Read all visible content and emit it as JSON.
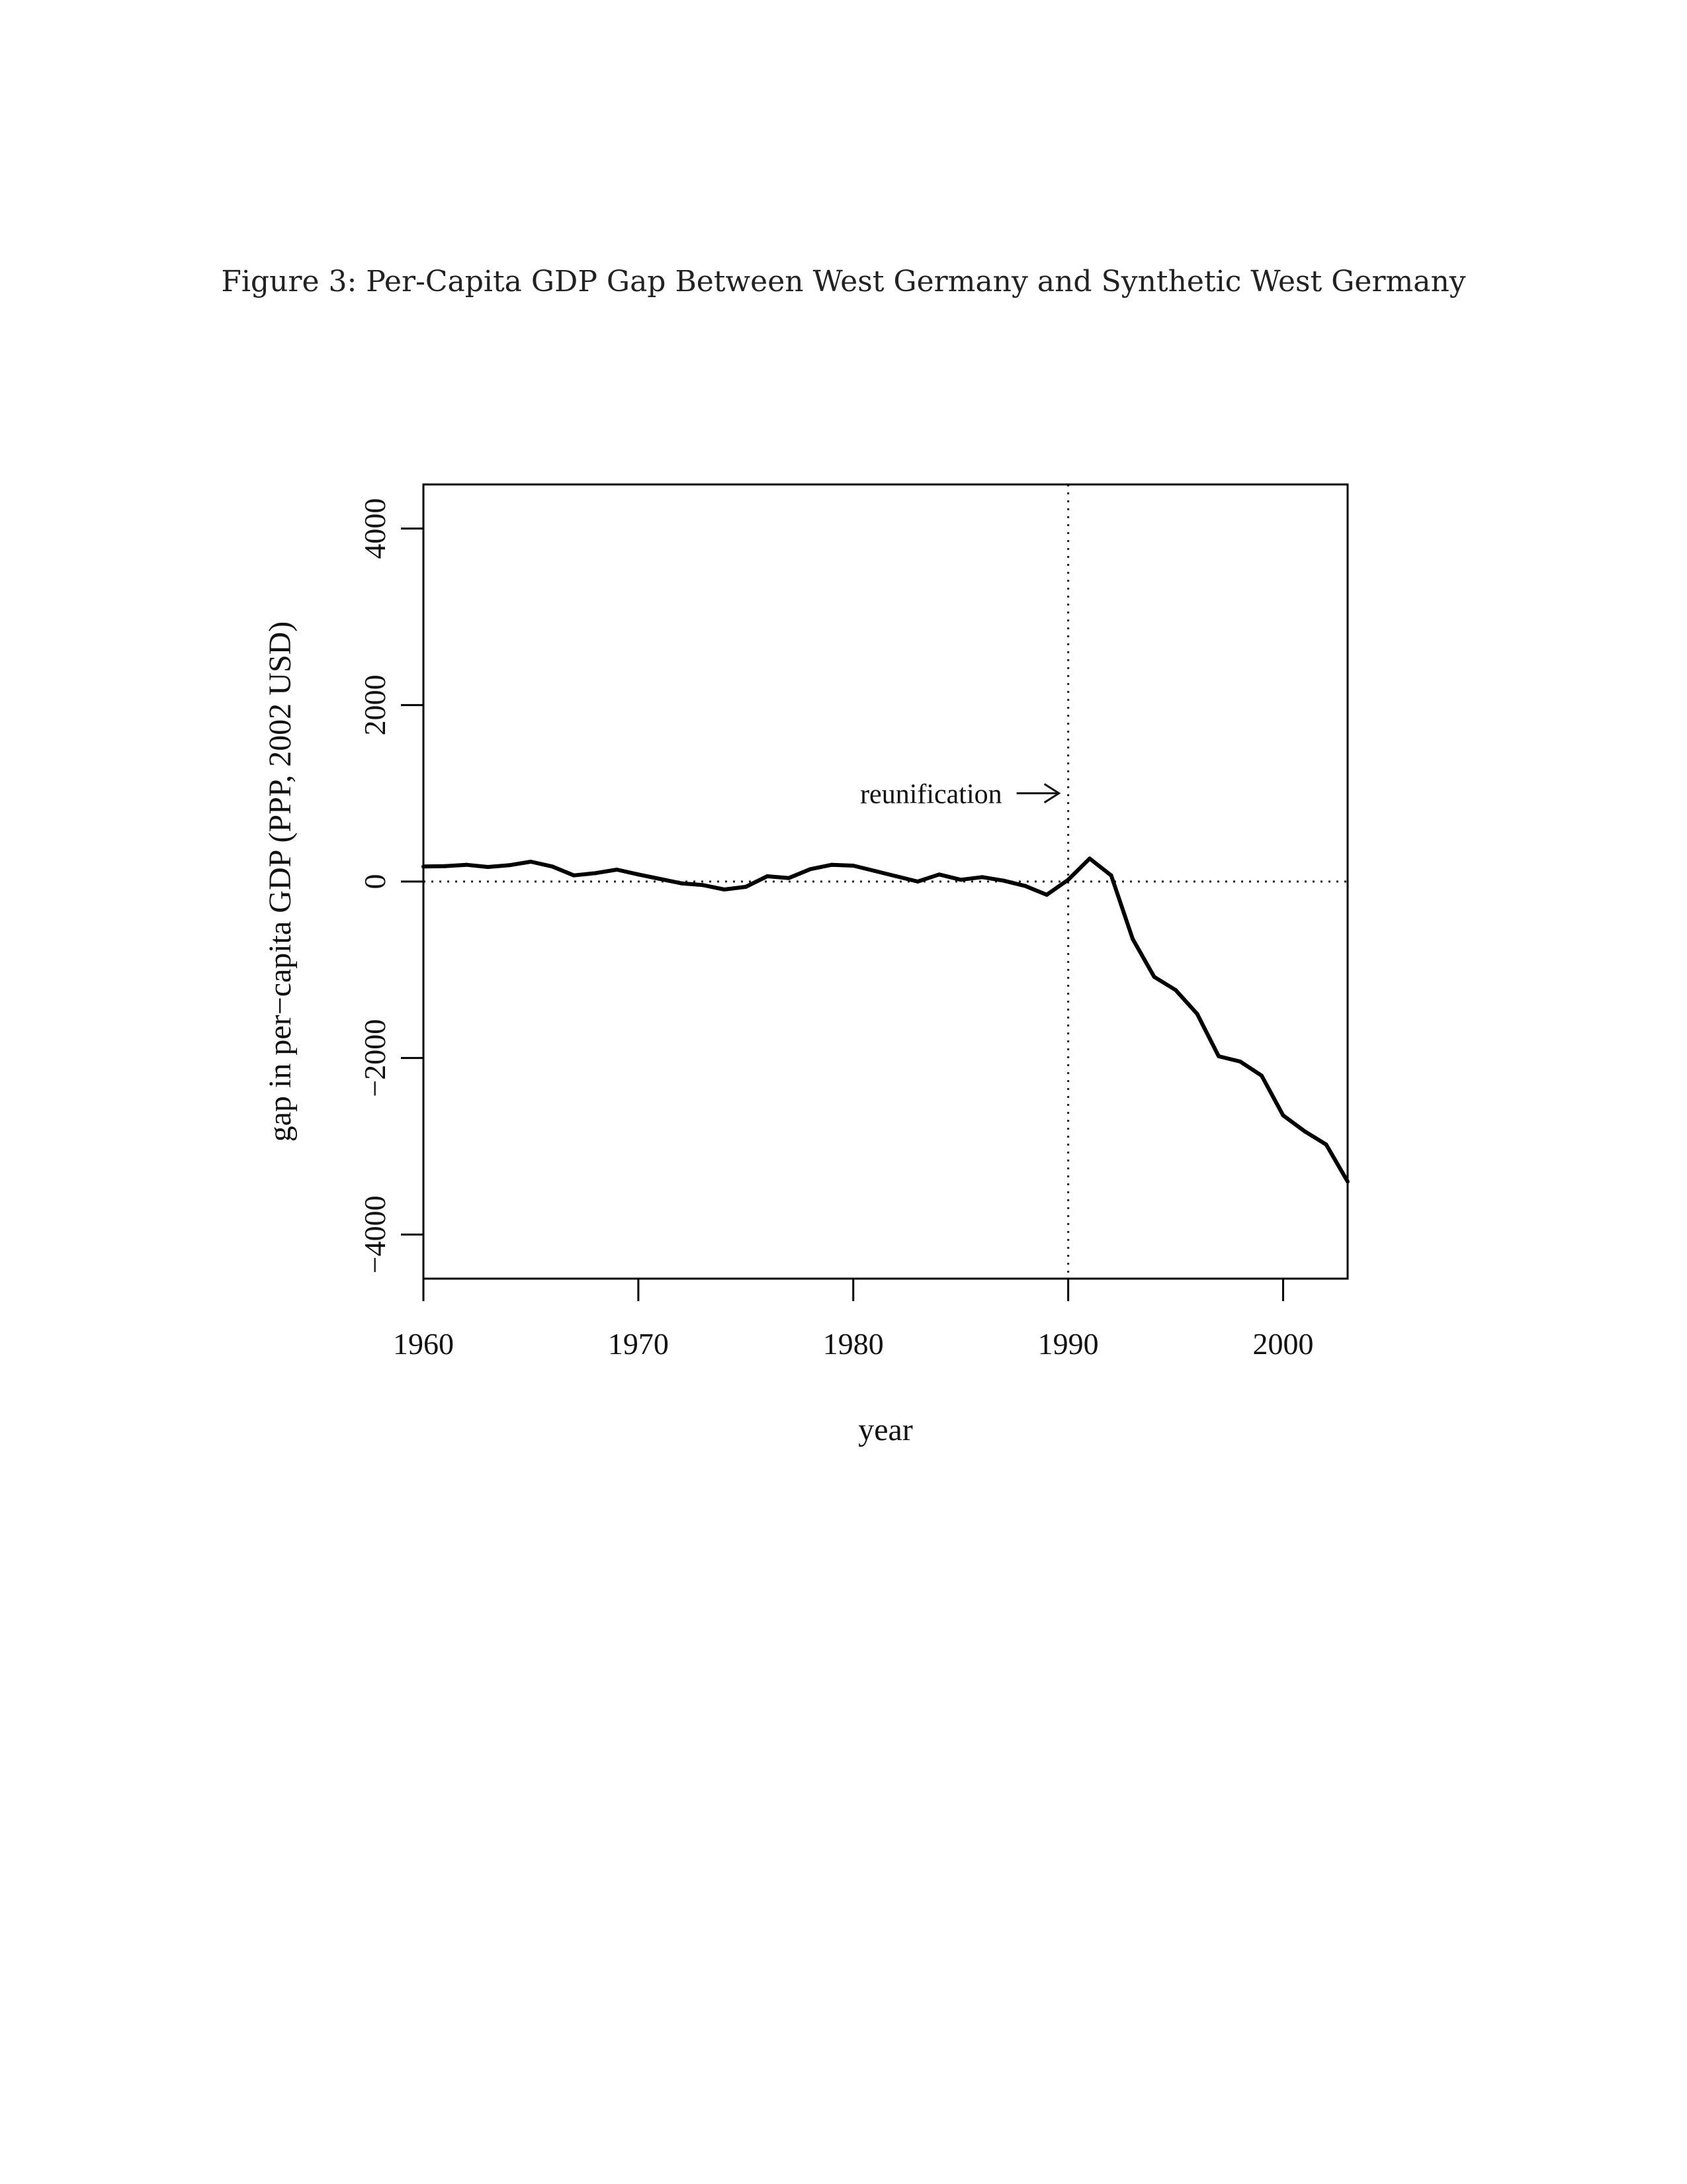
{
  "caption": "Figure 3: Per-Capita GDP Gap Between West Germany and Synthetic West Germany",
  "chart_data": {
    "type": "line",
    "title": "",
    "xlabel": "year",
    "ylabel": "gap in per−capita GDP (PPP, 2002 USD)",
    "xlim": [
      1960,
      2003
    ],
    "ylim": [
      -4500,
      4500
    ],
    "xticks": [
      1960,
      1970,
      1980,
      1990,
      2000
    ],
    "xtick_labels": [
      "1960",
      "1970",
      "1980",
      "1990",
      "2000"
    ],
    "yticks": [
      -4000,
      -2000,
      0,
      2000,
      4000
    ],
    "ytick_labels": [
      "−4000",
      "−2000",
      "0",
      "2000",
      "4000"
    ],
    "grid": false,
    "reference_lines": {
      "horizontal_y": 0,
      "vertical_x": 1990
    },
    "annotation": {
      "text": "reunification",
      "arrow_to_x": 1990,
      "y": 1000
    },
    "series": [
      {
        "x": [
          1960,
          1961,
          1962,
          1963,
          1964,
          1965,
          1966,
          1967,
          1968,
          1969,
          1970,
          1971,
          1972,
          1973,
          1974,
          1975,
          1976,
          1977,
          1978,
          1979,
          1980,
          1981,
          1982,
          1983,
          1984,
          1985,
          1986,
          1987,
          1988,
          1989,
          1990,
          1991,
          1992,
          1993,
          1994,
          1995,
          1996,
          1997,
          1998,
          1999,
          2000,
          2001,
          2002,
          2003
        ],
        "values": [
          170,
          175,
          190,
          165,
          185,
          225,
          170,
          70,
          95,
          135,
          80,
          30,
          -20,
          -40,
          -90,
          -60,
          60,
          40,
          140,
          190,
          180,
          120,
          60,
          0,
          80,
          20,
          50,
          10,
          -50,
          -150,
          20,
          260,
          70,
          -650,
          -1080,
          -1230,
          -1500,
          -1980,
          -2040,
          -2200,
          -2650,
          -2830,
          -2980,
          -3400
        ]
      }
    ]
  }
}
